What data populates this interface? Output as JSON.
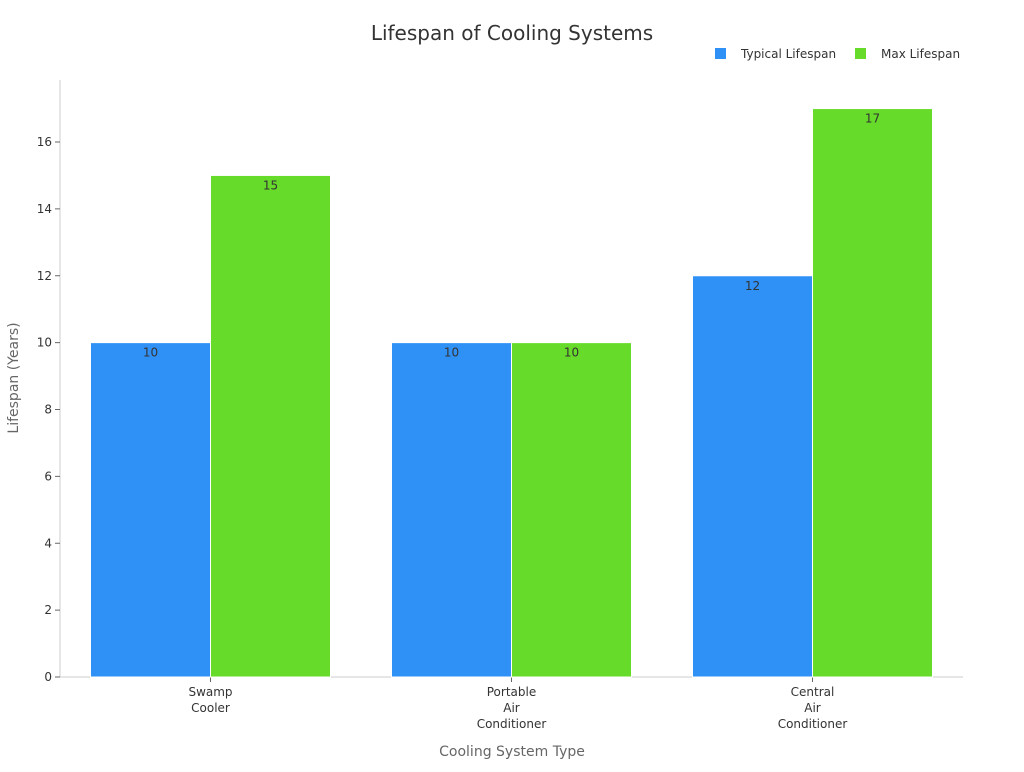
{
  "chart_data": {
    "type": "bar",
    "title": "Lifespan of Cooling Systems",
    "xlabel": "Cooling System Type",
    "ylabel": "Lifespan (Years)",
    "categories": [
      [
        "Swamp",
        "Cooler"
      ],
      [
        "Portable",
        "Air",
        "Conditioner"
      ],
      [
        "Central",
        "Air",
        "Conditioner"
      ]
    ],
    "series": [
      {
        "name": "Typical Lifespan",
        "values": [
          10,
          10,
          12
        ],
        "color": "#2f91f5"
      },
      {
        "name": "Max Lifespan",
        "values": [
          15,
          10,
          17
        ],
        "color": "#66db29"
      }
    ],
    "ylim": [
      0,
      17.9
    ],
    "yticks": [
      0,
      2,
      4,
      6,
      8,
      10,
      12,
      14,
      16
    ],
    "grid": false,
    "legend": "top-right",
    "data_labels": true
  }
}
